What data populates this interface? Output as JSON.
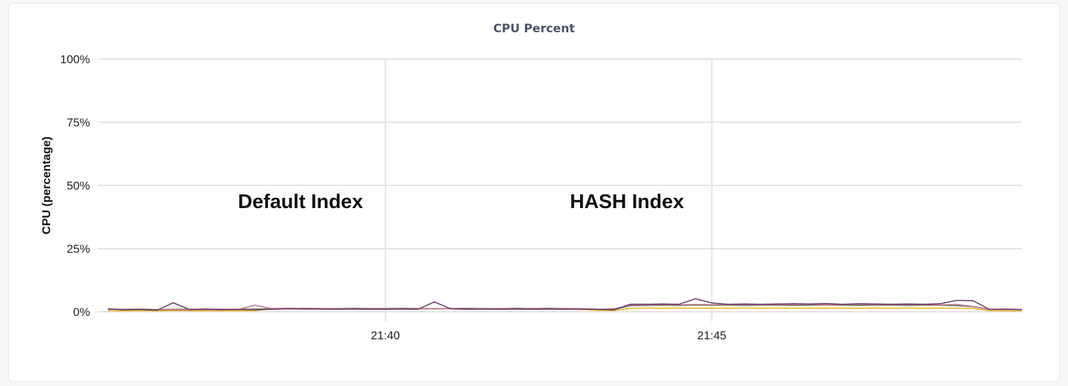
{
  "chart_data": {
    "type": "line",
    "title": "CPU Percent",
    "ylabel": "CPU (percentage)",
    "xlabel": "",
    "ylim": [
      0,
      100
    ],
    "y_ticks": [
      {
        "value": 0,
        "label": "0%"
      },
      {
        "value": 25,
        "label": "25%"
      },
      {
        "value": 50,
        "label": "50%"
      },
      {
        "value": 75,
        "label": "75%"
      },
      {
        "value": 100,
        "label": "100%"
      }
    ],
    "x_range_minutes": [
      35.75,
      49.75
    ],
    "x_ticks": [
      {
        "value": 40,
        "label": "21:40"
      },
      {
        "value": 45,
        "label": "21:45"
      }
    ],
    "grid": true,
    "annotations": [
      {
        "text": "Default Index",
        "x": 38.7,
        "y": 41
      },
      {
        "text": "HASH Index",
        "x": 43.7,
        "y": 41
      }
    ],
    "x": [
      35.75,
      36.0,
      36.25,
      36.5,
      36.75,
      37.0,
      37.25,
      37.5,
      37.75,
      38.0,
      38.25,
      38.5,
      38.75,
      39.0,
      39.25,
      39.5,
      39.75,
      40.0,
      40.25,
      40.5,
      40.75,
      41.0,
      41.25,
      41.5,
      41.75,
      42.0,
      42.25,
      42.5,
      42.75,
      43.0,
      43.25,
      43.5,
      43.75,
      44.0,
      44.25,
      44.5,
      44.75,
      45.0,
      45.25,
      45.5,
      45.75,
      46.0,
      46.25,
      46.5,
      46.75,
      47.0,
      47.25,
      47.5,
      47.75,
      48.0,
      48.25,
      48.5,
      48.75,
      49.0,
      49.25,
      49.5,
      49.75
    ],
    "series": [
      {
        "color": "#6b3a6b",
        "values": [
          1.2,
          0.8,
          1.0,
          0.6,
          3.6,
          0.9,
          1.1,
          0.9,
          1.0,
          0.8,
          1.0,
          1.2,
          1.1,
          1.1,
          1.0,
          1.1,
          1.0,
          1.0,
          1.1,
          1.0,
          3.9,
          1.2,
          1.0,
          1.1,
          1.0,
          1.1,
          1.0,
          1.1,
          1.0,
          1.1,
          1.0,
          0.8,
          3.0,
          3.0,
          3.1,
          3.0,
          5.2,
          3.5,
          3.0,
          3.1,
          3.0,
          3.1,
          3.2,
          3.1,
          3.3,
          3.0,
          3.2,
          3.1,
          3.0,
          3.1,
          3.0,
          3.2,
          4.5,
          4.4,
          1.0,
          1.1,
          0.9
        ]
      },
      {
        "color": "#c06c84",
        "values": [
          1.0,
          0.9,
          0.9,
          0.8,
          0.9,
          0.8,
          0.9,
          0.8,
          0.9,
          2.6,
          1.3,
          1.4,
          1.3,
          1.3,
          1.2,
          1.3,
          1.2,
          1.2,
          1.3,
          1.2,
          1.2,
          1.3,
          1.2,
          1.2,
          1.3,
          1.2,
          1.3,
          1.2,
          1.3,
          1.2,
          1.0,
          1.2,
          2.6,
          2.7,
          2.8,
          2.7,
          2.9,
          2.8,
          2.8,
          2.8,
          2.7,
          2.8,
          2.8,
          2.9,
          2.7,
          2.8,
          2.9,
          2.8,
          2.7,
          2.8,
          2.8,
          2.7,
          2.9,
          2.1,
          1.0,
          0.9,
          0.9
        ]
      },
      {
        "color": "#4e8f62",
        "values": [
          1.1,
          1.0,
          1.1,
          0.9,
          1.0,
          1.0,
          1.1,
          1.0,
          1.0,
          1.1,
          1.2,
          1.3,
          1.4,
          1.3,
          1.3,
          1.4,
          1.3,
          1.3,
          1.4,
          1.3,
          1.2,
          1.3,
          1.4,
          1.3,
          1.3,
          1.4,
          1.3,
          1.4,
          1.3,
          1.2,
          1.0,
          0.9,
          2.4,
          2.5,
          2.6,
          2.5,
          2.7,
          2.6,
          2.6,
          2.5,
          2.6,
          2.6,
          2.5,
          2.6,
          2.7,
          2.6,
          2.5,
          2.6,
          2.6,
          2.5,
          2.6,
          2.6,
          2.4,
          2.0,
          1.0,
          1.0,
          0.9
        ]
      },
      {
        "color": "#e0b020",
        "values": [
          0.5,
          0.4,
          0.5,
          0.4,
          0.5,
          0.4,
          0.5,
          0.4,
          0.5,
          0.4,
          1.2,
          1.3,
          1.2,
          1.3,
          1.2,
          1.3,
          1.2,
          1.3,
          1.2,
          1.3,
          1.2,
          1.3,
          1.2,
          1.3,
          1.2,
          1.3,
          1.2,
          1.3,
          1.2,
          0.9,
          0.6,
          0.5,
          1.4,
          1.5,
          1.4,
          1.5,
          1.4,
          1.5,
          1.4,
          1.5,
          1.4,
          1.5,
          1.4,
          1.5,
          1.4,
          1.5,
          1.4,
          1.5,
          1.4,
          1.5,
          1.4,
          1.5,
          1.4,
          1.3,
          0.5,
          0.4,
          0.4
        ]
      }
    ]
  }
}
